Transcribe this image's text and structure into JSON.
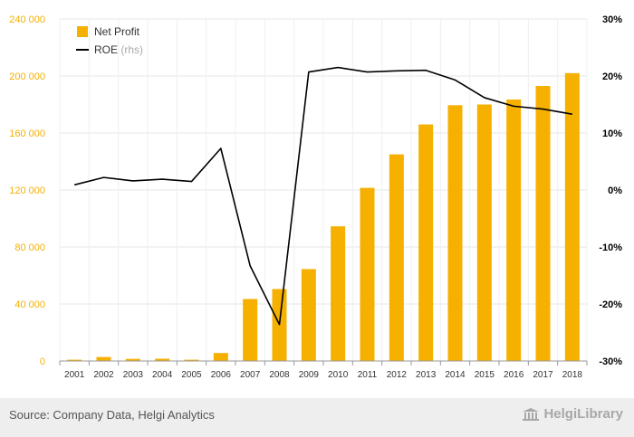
{
  "chart_data": {
    "type": "bar+line",
    "categories": [
      "2001",
      "2002",
      "2003",
      "2004",
      "2005",
      "2006",
      "2007",
      "2008",
      "2009",
      "2010",
      "2011",
      "2012",
      "2013",
      "2014",
      "2015",
      "2016",
      "2017",
      "2018"
    ],
    "series": [
      {
        "name": "Net Profit",
        "type": "bar",
        "axis": "left",
        "color": "#f5b000",
        "values": [
          900,
          2800,
          1500,
          1600,
          900,
          5600,
          43500,
          50500,
          64500,
          94500,
          121500,
          145000,
          166000,
          179500,
          180000,
          183500,
          193000,
          202000
        ]
      },
      {
        "name": "ROE",
        "type": "line",
        "axis": "right",
        "color": "#000000",
        "values": [
          0.9,
          2.2,
          1.6,
          1.9,
          1.5,
          7.3,
          -13.3,
          -23.6,
          20.7,
          21.5,
          20.7,
          20.9,
          21.0,
          19.3,
          16.2,
          14.7,
          14.2,
          13.3
        ]
      }
    ],
    "legend": [
      {
        "label": "Net Profit",
        "suffix": "",
        "swatch": "box",
        "color": "#f5b000"
      },
      {
        "label": "ROE",
        "suffix": " (rhs)",
        "swatch": "line",
        "color": "#000000"
      }
    ],
    "legend_position": "top-left",
    "y_left": {
      "range": [
        0,
        240000
      ],
      "ticks": [
        0,
        40000,
        80000,
        120000,
        160000,
        200000,
        240000
      ],
      "tick_labels": [
        "0",
        "40 000",
        "80 000",
        "120 000",
        "160 000",
        "200 000",
        "240 000"
      ],
      "label_color": "#f5b000"
    },
    "y_right": {
      "range": [
        -30,
        30
      ],
      "ticks": [
        -30,
        -20,
        -10,
        0,
        10,
        20,
        30
      ],
      "tick_labels": [
        "-30%",
        "-20%",
        "-10%",
        "0%",
        "10%",
        "20%",
        "30%"
      ],
      "label_color": "#000000"
    },
    "grid": true
  },
  "footer": {
    "source": "Source: Company Data, Helgi Analytics",
    "logo_text": "HelgiLibrary",
    "logo_icon": "library-building-icon"
  }
}
